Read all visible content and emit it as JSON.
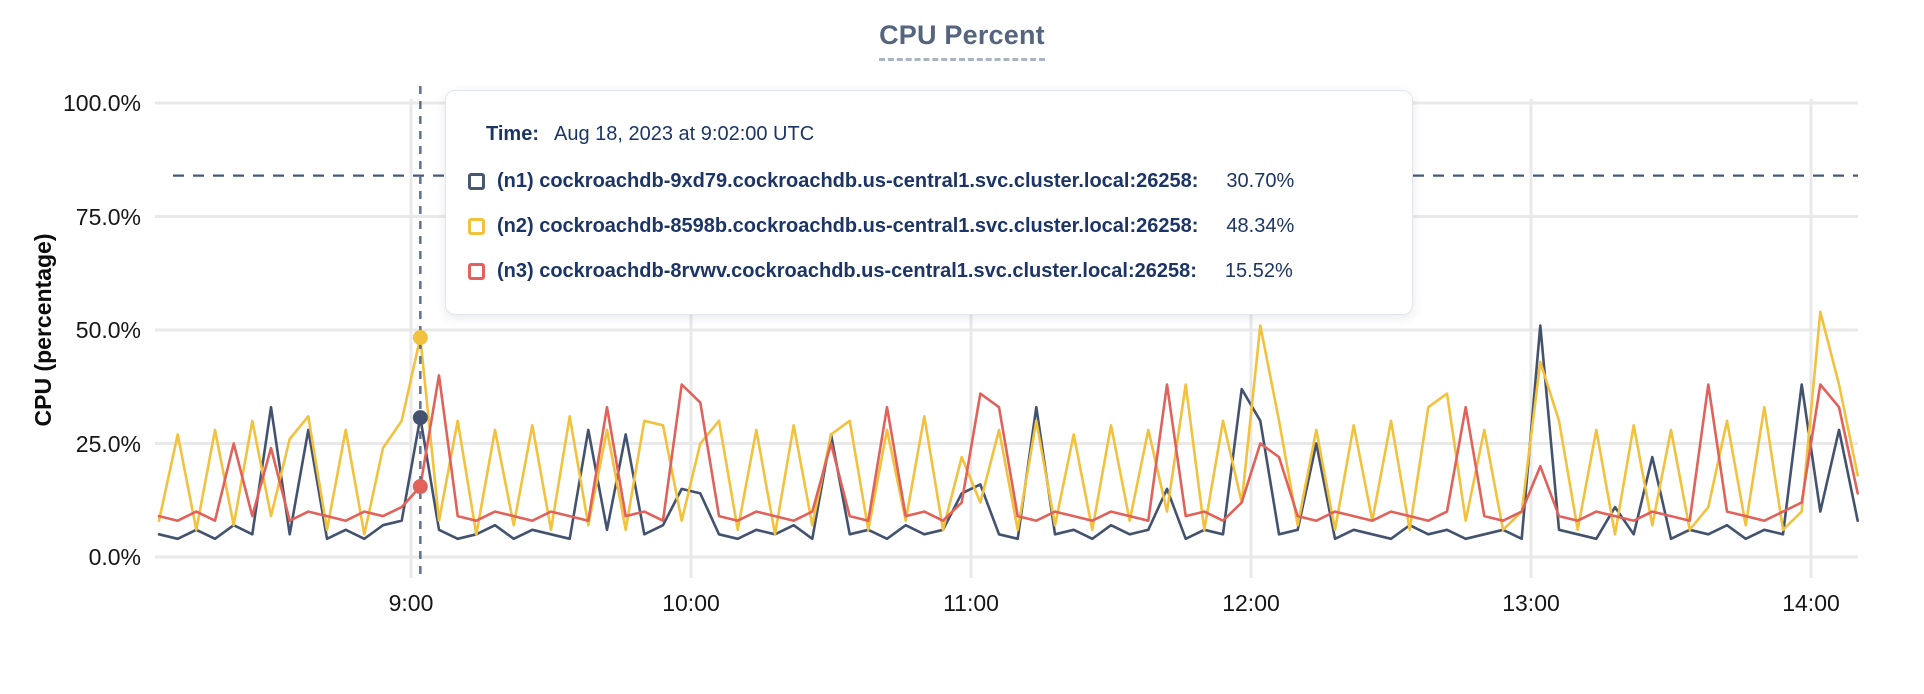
{
  "title": "CPU Percent",
  "y_axis": {
    "label": "CPU (percentage)",
    "ticks": [
      {
        "label": "100.0%",
        "value": 100
      },
      {
        "label": "75.0%",
        "value": 75
      },
      {
        "label": "50.0%",
        "value": 50
      },
      {
        "label": "25.0%",
        "value": 25
      },
      {
        "label": "0.0%",
        "value": 0
      }
    ]
  },
  "x_axis": {
    "ticks": [
      "9:00",
      "10:00",
      "11:00",
      "12:00",
      "13:00",
      "14:00"
    ]
  },
  "tooltip": {
    "time_label": "Time:",
    "time_value": "Aug 18, 2023 at 9:02:00 UTC",
    "rows": [
      {
        "name": "(n1) cockroachdb-9xd79.cockroachdb.us-central1.svc.cluster.local:26258:",
        "value": "30.70%",
        "color": "#475872"
      },
      {
        "name": "(n2) cockroachdb-8598b.cockroachdb.us-central1.svc.cluster.local:26258:",
        "value": "48.34%",
        "color": "#f1c33c"
      },
      {
        "name": "(n3) cockroachdb-8rvwv.cockroachdb.us-central1.svc.cluster.local:26258:",
        "value": "15.52%",
        "color": "#e0625a"
      }
    ]
  },
  "colors": {
    "grid": "#e9e9e9",
    "threshold_dash": "#47597a",
    "hover_dash": "#5f7190",
    "axis_text": "#161616",
    "title_text": "#55657f"
  },
  "chart_data": {
    "type": "line",
    "title": "CPU Percent",
    "xlabel": "",
    "ylabel": "CPU (percentage)",
    "ylim": [
      0,
      100
    ],
    "grid": true,
    "legend_position": "tooltip",
    "x_range": [
      "8:06",
      "14:10"
    ],
    "x_tick_labels": [
      "9:00",
      "10:00",
      "11:00",
      "12:00",
      "13:00",
      "14:00"
    ],
    "threshold_dashed_y": 84,
    "hover": {
      "time": "9:02",
      "time_full": "Aug 18, 2023 at 9:02:00 UTC",
      "values": [
        30.7,
        48.34,
        15.52
      ]
    },
    "x": [
      "8:06",
      "8:10",
      "8:14",
      "8:18",
      "8:22",
      "8:26",
      "8:30",
      "8:34",
      "8:38",
      "8:42",
      "8:46",
      "8:50",
      "8:54",
      "8:58",
      "9:02",
      "9:06",
      "9:10",
      "9:14",
      "9:18",
      "9:22",
      "9:26",
      "9:30",
      "9:34",
      "9:38",
      "9:42",
      "9:46",
      "9:50",
      "9:54",
      "9:58",
      "10:02",
      "10:06",
      "10:10",
      "10:14",
      "10:18",
      "10:22",
      "10:26",
      "10:30",
      "10:34",
      "10:38",
      "10:42",
      "10:46",
      "10:50",
      "10:54",
      "10:58",
      "11:02",
      "11:06",
      "11:10",
      "11:14",
      "11:18",
      "11:22",
      "11:26",
      "11:30",
      "11:34",
      "11:38",
      "11:42",
      "11:46",
      "11:50",
      "11:54",
      "11:58",
      "12:02",
      "12:06",
      "12:10",
      "12:14",
      "12:18",
      "12:22",
      "12:26",
      "12:30",
      "12:34",
      "12:38",
      "12:42",
      "12:46",
      "12:50",
      "12:54",
      "12:58",
      "13:02",
      "13:06",
      "13:10",
      "13:14",
      "13:18",
      "13:22",
      "13:26",
      "13:30",
      "13:34",
      "13:38",
      "13:42",
      "13:46",
      "13:50",
      "13:54",
      "13:58",
      "14:02",
      "14:06",
      "14:10"
    ],
    "series": [
      {
        "name": "(n1) cockroachdb-9xd79.cockroachdb.us-central1.svc.cluster.local:26258",
        "color": "#43526e",
        "values": [
          5,
          4,
          6,
          4,
          7,
          5,
          33,
          5,
          28,
          4,
          6,
          4,
          7,
          8,
          30.7,
          6,
          4,
          5,
          7,
          4,
          6,
          5,
          4,
          28,
          6,
          27,
          5,
          7,
          15,
          14,
          5,
          4,
          6,
          5,
          7,
          4,
          27,
          5,
          6,
          4,
          7,
          5,
          6,
          14,
          16,
          5,
          4,
          33,
          5,
          6,
          4,
          7,
          5,
          6,
          15,
          4,
          6,
          5,
          37,
          30,
          5,
          6,
          25,
          4,
          6,
          5,
          4,
          7,
          5,
          6,
          4,
          5,
          6,
          4,
          51,
          6,
          5,
          4,
          11,
          5,
          22,
          4,
          6,
          5,
          7,
          4,
          6,
          5,
          38,
          10,
          28,
          8
        ]
      },
      {
        "name": "(n2) cockroachdb-8598b.cockroachdb.us-central1.svc.cluster.local:26258",
        "color": "#f2c13e",
        "values": [
          8,
          27,
          6,
          28,
          7,
          30,
          9,
          26,
          31,
          6,
          28,
          5,
          24,
          30,
          48.34,
          8,
          30,
          5,
          28,
          7,
          29,
          6,
          31,
          7,
          28,
          6,
          30,
          29,
          8,
          25,
          30,
          6,
          28,
          5,
          29,
          7,
          27,
          30,
          6,
          28,
          8,
          31,
          6,
          22,
          12,
          28,
          6,
          30,
          7,
          27,
          6,
          29,
          8,
          28,
          10,
          38,
          6,
          30,
          12,
          51,
          30,
          7,
          28,
          6,
          29,
          8,
          30,
          6,
          33,
          36,
          8,
          28,
          6,
          10,
          43,
          30,
          6,
          28,
          5,
          29,
          7,
          28,
          6,
          11,
          30,
          7,
          33,
          6,
          10,
          54,
          38,
          18
        ]
      },
      {
        "name": "(n3) cockroachdb-8rvwv.cockroachdb.us-central1.svc.cluster.local:26258",
        "color": "#e0625a",
        "values": [
          9,
          8,
          10,
          8,
          25,
          9,
          24,
          8,
          10,
          9,
          8,
          10,
          9,
          11,
          15.52,
          40,
          9,
          8,
          10,
          9,
          8,
          10,
          9,
          8,
          33,
          9,
          10,
          8,
          38,
          34,
          9,
          8,
          10,
          9,
          8,
          10,
          25,
          9,
          8,
          33,
          9,
          10,
          8,
          12,
          36,
          33,
          9,
          8,
          10,
          9,
          8,
          10,
          9,
          8,
          38,
          9,
          10,
          8,
          12,
          25,
          22,
          9,
          8,
          10,
          9,
          8,
          10,
          9,
          8,
          10,
          33,
          9,
          8,
          10,
          20,
          9,
          8,
          10,
          9,
          8,
          10,
          9,
          8,
          38,
          10,
          9,
          8,
          10,
          12,
          38,
          33,
          14
        ]
      }
    ]
  }
}
